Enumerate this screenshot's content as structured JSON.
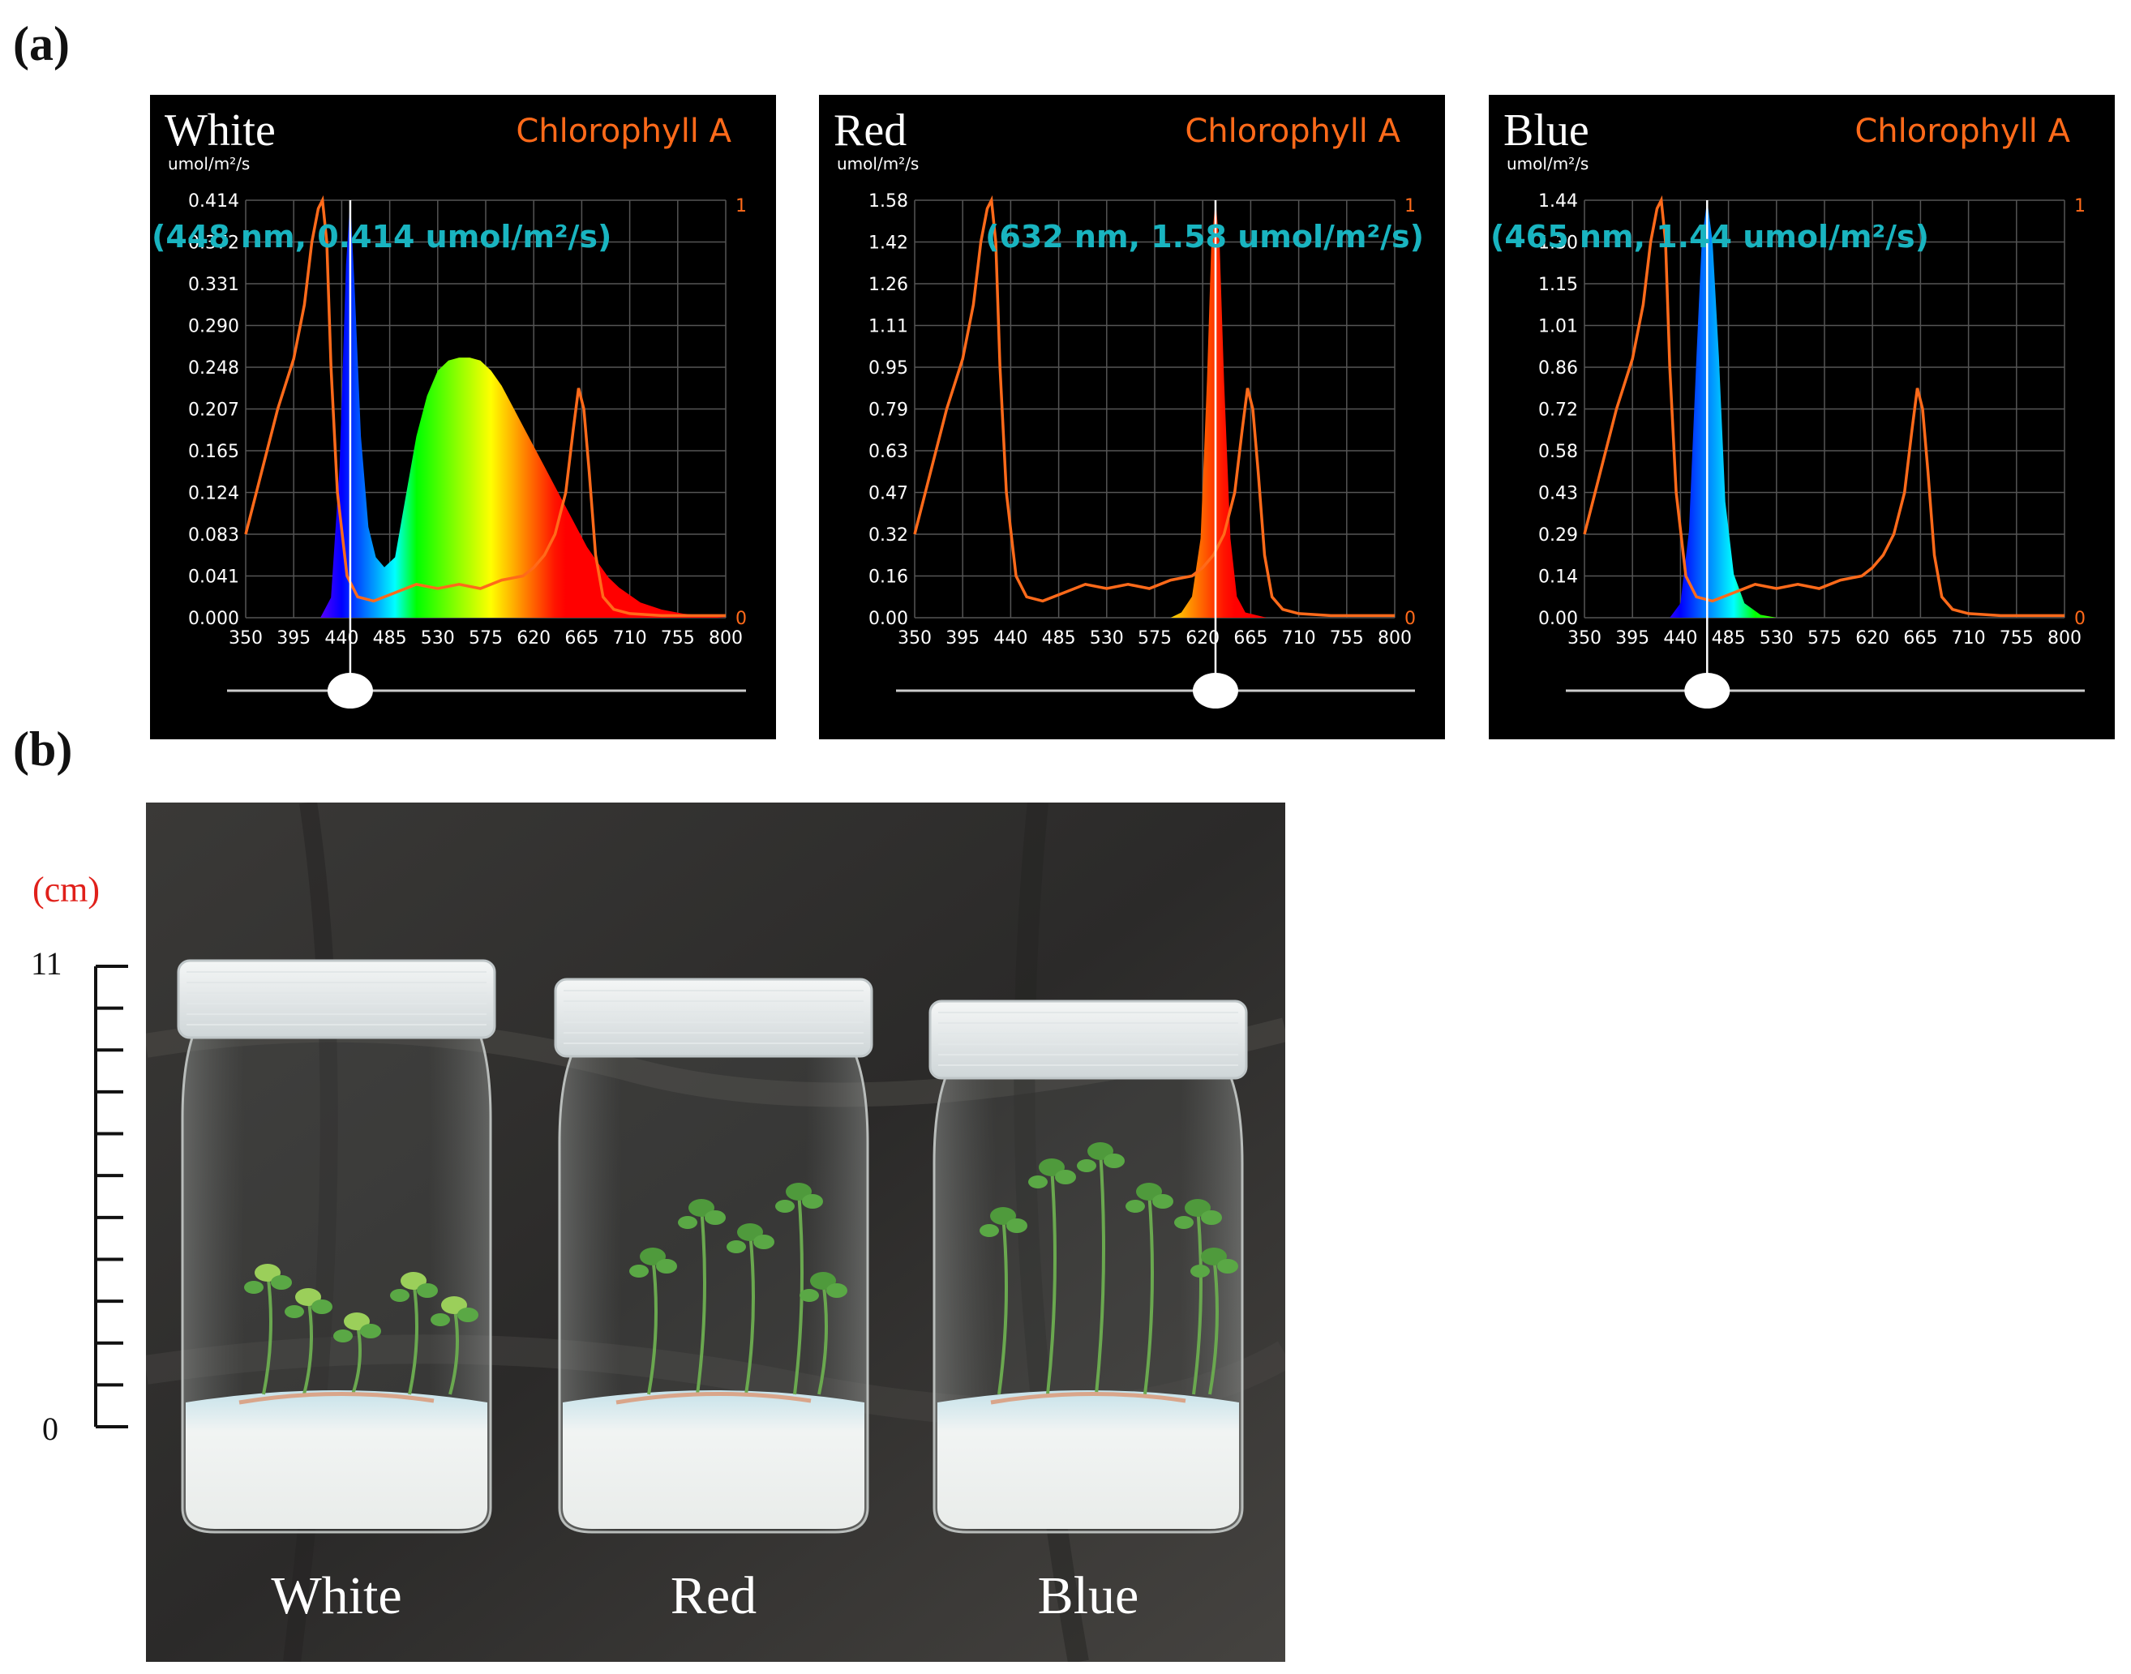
{
  "figure": {
    "panel_a_label": "(a)",
    "panel_b_label": "(b)"
  },
  "chart_data": [
    {
      "type": "line",
      "title": "White",
      "overlay_title": "Chlorophyll A",
      "ylabel": "umol/m²/s",
      "readout": "(448 nm, 0.414 umol/m²/s)",
      "cursor_nm": 448,
      "xlim": [
        350,
        800
      ],
      "ylim": [
        0,
        0.414
      ],
      "x_ticks": [
        "350",
        "395",
        "440",
        "485",
        "530",
        "575",
        "620",
        "665",
        "710",
        "755",
        "800"
      ],
      "y_ticks": [
        "0.000",
        "0.041",
        "0.083",
        "0.124",
        "0.165",
        "0.207",
        "0.248",
        "0.290",
        "0.331",
        "0.372",
        "0.414"
      ],
      "right_axis": [
        "0",
        "1"
      ],
      "series": [
        {
          "name": "White LED spectrum",
          "x": [
            350,
            420,
            430,
            438,
            444,
            448,
            452,
            458,
            465,
            472,
            480,
            490,
            500,
            510,
            520,
            530,
            540,
            550,
            560,
            570,
            580,
            590,
            600,
            610,
            620,
            630,
            640,
            650,
            660,
            670,
            680,
            690,
            700,
            720,
            740,
            760,
            780,
            800
          ],
          "y": [
            0,
            0,
            0.02,
            0.15,
            0.35,
            0.414,
            0.33,
            0.18,
            0.09,
            0.06,
            0.05,
            0.06,
            0.12,
            0.18,
            0.22,
            0.245,
            0.255,
            0.258,
            0.258,
            0.255,
            0.245,
            0.23,
            0.21,
            0.19,
            0.17,
            0.15,
            0.13,
            0.11,
            0.09,
            0.07,
            0.055,
            0.04,
            0.03,
            0.015,
            0.008,
            0.004,
            0.002,
            0
          ]
        },
        {
          "name": "Chlorophyll A absorbance",
          "x": [
            350,
            365,
            380,
            395,
            405,
            412,
            418,
            422,
            426,
            430,
            436,
            445,
            455,
            470,
            490,
            510,
            530,
            550,
            570,
            590,
            610,
            620,
            630,
            640,
            650,
            657,
            662,
            667,
            672,
            678,
            685,
            695,
            710,
            740,
            770,
            800
          ],
          "y": [
            0.2,
            0.35,
            0.5,
            0.62,
            0.75,
            0.9,
            0.98,
            1.0,
            0.9,
            0.6,
            0.3,
            0.1,
            0.05,
            0.04,
            0.06,
            0.08,
            0.07,
            0.08,
            0.07,
            0.09,
            0.1,
            0.12,
            0.15,
            0.2,
            0.3,
            0.45,
            0.55,
            0.5,
            0.35,
            0.15,
            0.05,
            0.02,
            0.01,
            0.005,
            0.005,
            0.005
          ]
        }
      ]
    },
    {
      "type": "line",
      "title": "Red",
      "overlay_title": "Chlorophyll A",
      "ylabel": "umol/m²/s",
      "readout": "(632 nm, 1.58 umol/m²/s)",
      "cursor_nm": 632,
      "xlim": [
        350,
        800
      ],
      "ylim": [
        0,
        1.58
      ],
      "x_ticks": [
        "350",
        "395",
        "440",
        "485",
        "530",
        "575",
        "620",
        "665",
        "710",
        "755",
        "800"
      ],
      "y_ticks": [
        "0.00",
        "0.16",
        "0.32",
        "0.47",
        "0.63",
        "0.79",
        "0.95",
        "1.11",
        "1.26",
        "1.42",
        "1.58"
      ],
      "right_axis": [
        "0",
        "1"
      ],
      "series": [
        {
          "name": "Red LED spectrum",
          "x": [
            350,
            590,
            600,
            610,
            618,
            624,
            628,
            632,
            636,
            640,
            646,
            652,
            660,
            680,
            800
          ],
          "y": [
            0,
            0,
            0.02,
            0.08,
            0.3,
            0.9,
            1.4,
            1.58,
            1.4,
            0.9,
            0.3,
            0.08,
            0.02,
            0,
            0
          ]
        },
        {
          "name": "Chlorophyll A absorbance",
          "x": [
            350,
            365,
            380,
            395,
            405,
            412,
            418,
            422,
            426,
            430,
            436,
            445,
            455,
            470,
            490,
            510,
            530,
            550,
            570,
            590,
            610,
            620,
            630,
            640,
            650,
            657,
            662,
            667,
            672,
            678,
            685,
            695,
            710,
            740,
            770,
            800
          ],
          "y": [
            0.2,
            0.35,
            0.5,
            0.62,
            0.75,
            0.9,
            0.98,
            1.0,
            0.9,
            0.6,
            0.3,
            0.1,
            0.05,
            0.04,
            0.06,
            0.08,
            0.07,
            0.08,
            0.07,
            0.09,
            0.1,
            0.12,
            0.15,
            0.2,
            0.3,
            0.45,
            0.55,
            0.5,
            0.35,
            0.15,
            0.05,
            0.02,
            0.01,
            0.005,
            0.005,
            0.005
          ]
        }
      ]
    },
    {
      "type": "line",
      "title": "Blue",
      "overlay_title": "Chlorophyll A",
      "ylabel": "umol/m²/s",
      "readout": "(465 nm, 1.44 umol/m²/s)",
      "cursor_nm": 465,
      "xlim": [
        350,
        800
      ],
      "ylim": [
        0,
        1.44
      ],
      "x_ticks": [
        "350",
        "395",
        "440",
        "485",
        "530",
        "575",
        "620",
        "665",
        "710",
        "755",
        "800"
      ],
      "y_ticks": [
        "0.00",
        "0.14",
        "0.29",
        "0.43",
        "0.58",
        "0.72",
        "0.86",
        "1.01",
        "1.15",
        "1.30",
        "1.44"
      ],
      "right_axis": [
        "0",
        "1"
      ],
      "series": [
        {
          "name": "Blue LED spectrum",
          "x": [
            350,
            430,
            440,
            448,
            455,
            460,
            465,
            470,
            476,
            482,
            490,
            500,
            515,
            530,
            800
          ],
          "y": [
            0,
            0,
            0.05,
            0.3,
            0.9,
            1.3,
            1.44,
            1.3,
            0.9,
            0.4,
            0.15,
            0.05,
            0.01,
            0,
            0
          ]
        },
        {
          "name": "Chlorophyll A absorbance",
          "x": [
            350,
            365,
            380,
            395,
            405,
            412,
            418,
            422,
            426,
            430,
            436,
            445,
            455,
            470,
            490,
            510,
            530,
            550,
            570,
            590,
            610,
            620,
            630,
            640,
            650,
            657,
            662,
            667,
            672,
            678,
            685,
            695,
            710,
            740,
            770,
            800
          ],
          "y": [
            0.2,
            0.35,
            0.5,
            0.62,
            0.75,
            0.9,
            0.98,
            1.0,
            0.9,
            0.6,
            0.3,
            0.1,
            0.05,
            0.04,
            0.06,
            0.08,
            0.07,
            0.08,
            0.07,
            0.09,
            0.1,
            0.12,
            0.15,
            0.2,
            0.3,
            0.45,
            0.55,
            0.5,
            0.35,
            0.15,
            0.05,
            0.02,
            0.01,
            0.005,
            0.005,
            0.005
          ]
        }
      ]
    }
  ],
  "photo": {
    "jar_labels": [
      "White",
      "Red",
      "Blue"
    ],
    "scale_unit": "(cm)",
    "scale_top": "11",
    "scale_bottom": "0"
  },
  "colors": {
    "chlorophyll": "#ff6a1a",
    "readout": "#19b4c0",
    "scale_unit": "#e0201a"
  }
}
